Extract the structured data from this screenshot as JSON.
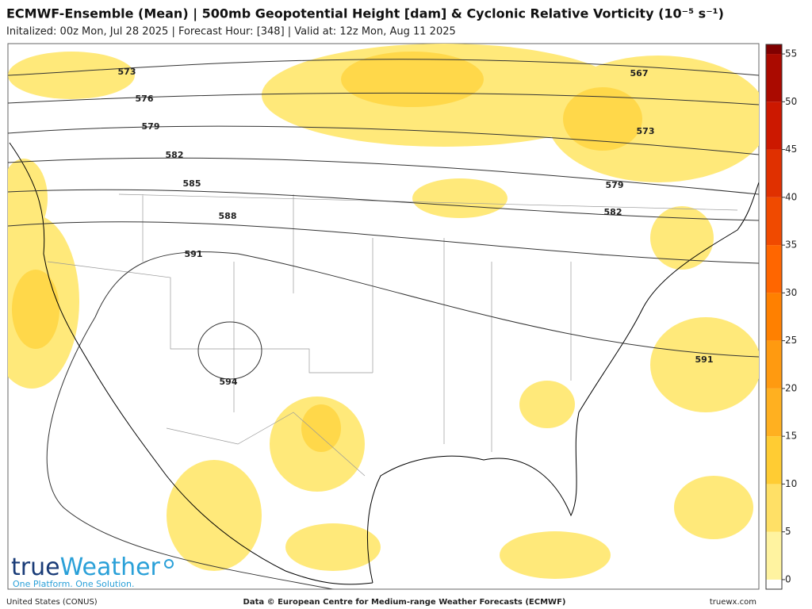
{
  "header": {
    "title": "ECMWF-Ensemble (Mean) | 500mb Geopotential Height [dam] & Cyclonic Relative Vorticity (10⁻⁵ s⁻¹)",
    "subtitle": "Initalized: 00z Mon, Jul 28 2025 | Forecast Hour: [348] | Valid at: 12z Mon, Aug 11 2025"
  },
  "contours": [
    573,
    576,
    579,
    582,
    585,
    588,
    591,
    594,
    567,
    573,
    579,
    582,
    591
  ],
  "colorbar": {
    "lim": [
      -1,
      56
    ],
    "ticks": [
      0,
      5,
      10,
      15,
      20,
      25,
      30,
      35,
      40,
      45,
      50,
      55
    ],
    "colors": [
      "#fff3a0",
      "#ffe066",
      "#ffcc33",
      "#ffb020",
      "#ff9a10",
      "#ff8000",
      "#ff6600",
      "#f04a00",
      "#e03000",
      "#cc1800",
      "#aa0a00",
      "#800000"
    ]
  },
  "logo": {
    "brand_a": "true",
    "brand_b": "Weather",
    "tagline": "One Platform. One Solution."
  },
  "footer": {
    "region": "United States (CONUS)",
    "credit": "Data © European Centre for Medium-range Weather Forecasts (ECMWF)",
    "site": "truewx.com"
  }
}
